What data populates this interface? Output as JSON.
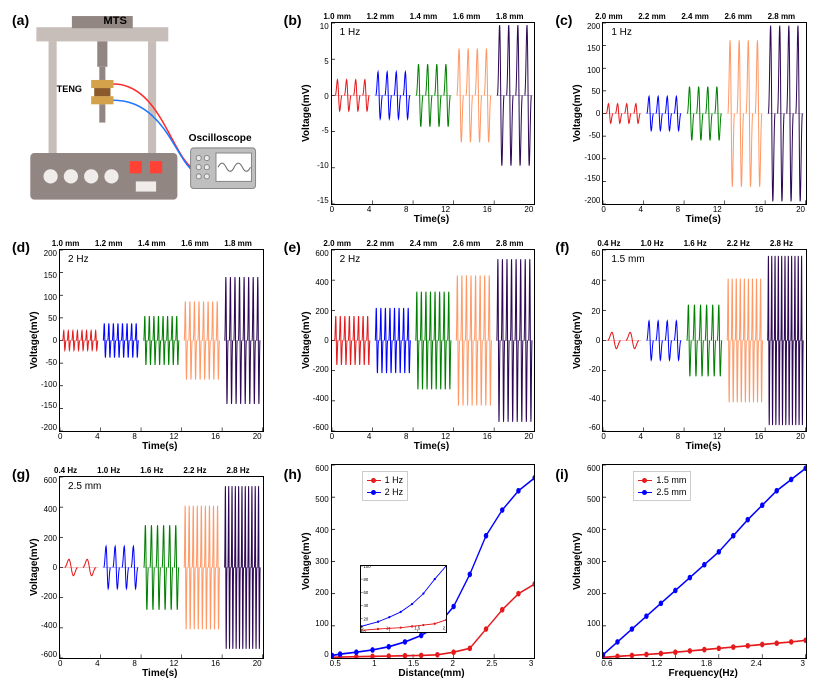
{
  "panels": {
    "a": {
      "label": "(a)",
      "mts_label": "MTS",
      "teng_label": "TENG",
      "oscilloscope_label": "Oscilloscope"
    },
    "b": {
      "label": "(b)",
      "type": "waveform",
      "inside_label": "1 Hz",
      "top_labels": [
        "1.0 mm",
        "1.2 mm",
        "1.4 mm",
        "1.6 mm",
        "1.8 mm"
      ],
      "ylabel": "Voltage(mV)",
      "xlabel": "Time(s)",
      "ylim": [
        -15,
        10
      ],
      "yticks": [
        10,
        5,
        0,
        -5,
        -10,
        -15
      ],
      "xlim": [
        0,
        20
      ],
      "xticks": [
        0,
        4,
        8,
        12,
        16,
        20
      ],
      "series_colors": [
        "#e41a1c",
        "#0000ff",
        "#008000",
        "#ff9966",
        "#2e0854"
      ],
      "series_amplitudes": [
        2,
        3,
        4,
        6,
        9
      ],
      "cycles_per_series": 4,
      "freq_hz": 1
    },
    "c": {
      "label": "(c)",
      "type": "waveform",
      "inside_label": "1 Hz",
      "top_labels": [
        "2.0 mm",
        "2.2 mm",
        "2.4 mm",
        "2.6 mm",
        "2.8 mm"
      ],
      "ylabel": "Voltage(mV)",
      "xlabel": "Time(s)",
      "ylim": [
        -200,
        200
      ],
      "yticks": [
        200,
        150,
        100,
        50,
        0,
        -50,
        -100,
        -150,
        -200
      ],
      "xlim": [
        0,
        20
      ],
      "xticks": [
        0,
        4,
        8,
        12,
        16,
        20
      ],
      "series_colors": [
        "#e41a1c",
        "#0000ff",
        "#008000",
        "#ff9966",
        "#2e0854"
      ],
      "series_amplitudes": [
        20,
        35,
        55,
        150,
        180
      ],
      "cycles_per_series": 4,
      "freq_hz": 1
    },
    "d": {
      "label": "(d)",
      "type": "waveform",
      "inside_label": "2 Hz",
      "top_labels": [
        "1.0 mm",
        "1.2 mm",
        "1.4 mm",
        "1.6 mm",
        "1.8 mm"
      ],
      "ylabel": "Voltage(mV)",
      "xlabel": "Time(s)",
      "ylim": [
        -200,
        200
      ],
      "yticks": [
        200,
        150,
        100,
        50,
        0,
        -50,
        -100,
        -150,
        -200
      ],
      "xlim": [
        0,
        20
      ],
      "xticks": [
        0,
        4,
        8,
        12,
        16,
        20
      ],
      "series_colors": [
        "#e41a1c",
        "#0000ff",
        "#008000",
        "#ff9966",
        "#2e0854"
      ],
      "series_amplitudes": [
        20,
        35,
        50,
        80,
        130
      ],
      "cycles_per_series": 8,
      "freq_hz": 2
    },
    "e": {
      "label": "(e)",
      "type": "waveform",
      "inside_label": "2 Hz",
      "top_labels": [
        "2.0 mm",
        "2.2 mm",
        "2.4 mm",
        "2.6 mm",
        "2.8 mm"
      ],
      "ylabel": "Voltage(mV)",
      "xlabel": "Time(s)",
      "ylim": [
        -600,
        600
      ],
      "yticks": [
        600,
        400,
        200,
        0,
        -200,
        -400,
        -600
      ],
      "xlim": [
        0,
        20
      ],
      "xticks": [
        0,
        4,
        8,
        12,
        16,
        20
      ],
      "series_colors": [
        "#e41a1c",
        "#0000ff",
        "#008000",
        "#ff9966",
        "#2e0854"
      ],
      "series_amplitudes": [
        150,
        200,
        300,
        400,
        500
      ],
      "cycles_per_series": 8,
      "freq_hz": 2
    },
    "f": {
      "label": "(f)",
      "type": "waveform",
      "inside_label": "1.5 mm",
      "top_labels": [
        "0.4 Hz",
        "1.0 Hz",
        "1.6 Hz",
        "2.2 Hz",
        "2.8 Hz"
      ],
      "ylabel": "Voltage(mV)",
      "xlabel": "Time(s)",
      "ylim": [
        -60,
        60
      ],
      "yticks": [
        60,
        40,
        20,
        0,
        -20,
        -40,
        -60
      ],
      "xlim": [
        0,
        20
      ],
      "xticks": [
        0,
        4,
        8,
        12,
        16,
        20
      ],
      "series_colors": [
        "#e41a1c",
        "#0000ff",
        "#008000",
        "#ff9966",
        "#2e0854"
      ],
      "series_amplitudes": [
        5,
        12,
        22,
        38,
        52
      ],
      "series_cycles": [
        2,
        4,
        6,
        9,
        11
      ]
    },
    "g": {
      "label": "(g)",
      "type": "waveform",
      "inside_label": "2.5 mm",
      "top_labels": [
        "0.4 Hz",
        "1.0 Hz",
        "1.6 Hz",
        "2.2 Hz",
        "2.8 Hz"
      ],
      "ylabel": "Voltage(mV)",
      "xlabel": "Time(s)",
      "ylim": [
        -600,
        600
      ],
      "yticks": [
        600,
        400,
        200,
        0,
        -200,
        -400,
        -600
      ],
      "xlim": [
        0,
        20
      ],
      "xticks": [
        0,
        4,
        8,
        12,
        16,
        20
      ],
      "series_colors": [
        "#e41a1c",
        "#0000ff",
        "#008000",
        "#ff9966",
        "#2e0854"
      ],
      "series_amplitudes": [
        50,
        130,
        260,
        380,
        500
      ],
      "series_cycles": [
        2,
        4,
        6,
        9,
        11
      ]
    },
    "h": {
      "label": "(h)",
      "type": "line",
      "ylabel": "Voltage(mV)",
      "xlabel": "Distance(mm)",
      "ylim": [
        0,
        600
      ],
      "yticks": [
        600,
        500,
        400,
        300,
        200,
        100,
        0
      ],
      "xlim": [
        0.5,
        3.0
      ],
      "xticks": [
        0.5,
        1.0,
        1.5,
        2.0,
        2.5,
        3.0
      ],
      "legend": [
        "1 Hz",
        "2 Hz"
      ],
      "legend_colors": [
        "#e41a1c",
        "#0000ff"
      ],
      "series": [
        {
          "color": "#e41a1c",
          "x": [
            0.5,
            0.6,
            0.8,
            1.0,
            1.2,
            1.4,
            1.6,
            1.8,
            2.0,
            2.2,
            2.4,
            2.6,
            2.8,
            3.0
          ],
          "y": [
            2,
            3,
            4,
            5,
            6,
            7,
            8,
            10,
            18,
            30,
            90,
            150,
            200,
            230
          ]
        },
        {
          "color": "#0000ff",
          "x": [
            0.5,
            0.6,
            0.8,
            1.0,
            1.2,
            1.4,
            1.6,
            1.8,
            2.0,
            2.2,
            2.4,
            2.6,
            2.8,
            3.0
          ],
          "y": [
            8,
            12,
            18,
            25,
            35,
            50,
            70,
            100,
            160,
            260,
            380,
            460,
            520,
            560
          ]
        }
      ],
      "inset": {
        "ylim": [
          0,
          100
        ],
        "xlim": [
          0.5,
          2.0
        ],
        "yticks": [
          100,
          80,
          60,
          40,
          20,
          0
        ],
        "xticks": [
          0.5,
          1.0,
          1.5,
          2.0
        ],
        "series": [
          {
            "color": "#e41a1c",
            "x": [
              0.5,
              0.8,
              1.0,
              1.2,
              1.4,
              1.6,
              1.8,
              2.0
            ],
            "y": [
              2,
              4,
              5,
              6,
              8,
              10,
              12,
              18
            ]
          },
          {
            "color": "#0000ff",
            "x": [
              0.5,
              0.8,
              1.0,
              1.2,
              1.4,
              1.6,
              1.8,
              2.0
            ],
            "y": [
              8,
              15,
              22,
              30,
              42,
              58,
              80,
              100
            ]
          }
        ]
      }
    },
    "i": {
      "label": "(i)",
      "type": "line",
      "ylabel": "Voltage(mV)",
      "xlabel": "Frequency(Hz)",
      "ylim": [
        0,
        600
      ],
      "yticks": [
        600,
        500,
        400,
        300,
        200,
        100,
        0
      ],
      "xlim": [
        0.2,
        3.0
      ],
      "xticks": [
        0.6,
        1.2,
        1.8,
        2.4,
        3.0
      ],
      "legend": [
        "1.5 mm",
        "2.5 mm"
      ],
      "legend_colors": [
        "#e41a1c",
        "#0000ff"
      ],
      "series": [
        {
          "color": "#e41a1c",
          "x": [
            0.2,
            0.4,
            0.6,
            0.8,
            1.0,
            1.2,
            1.4,
            1.6,
            1.8,
            2.0,
            2.2,
            2.4,
            2.6,
            2.8,
            3.0
          ],
          "y": [
            2,
            5,
            8,
            11,
            14,
            18,
            22,
            26,
            30,
            34,
            38,
            42,
            46,
            50,
            55
          ]
        },
        {
          "color": "#0000ff",
          "x": [
            0.2,
            0.4,
            0.6,
            0.8,
            1.0,
            1.2,
            1.4,
            1.6,
            1.8,
            2.0,
            2.2,
            2.4,
            2.6,
            2.8,
            3.0
          ],
          "y": [
            10,
            50,
            90,
            130,
            170,
            210,
            250,
            290,
            330,
            380,
            430,
            475,
            520,
            555,
            590
          ]
        }
      ]
    }
  },
  "schematic_colors": {
    "machine_body": "#c8beb9",
    "machine_dark": "#928682",
    "buttons": "#ff4136",
    "knobs": "#f0ece9",
    "teng_gold": "#d4a24a",
    "teng_brown": "#8a5a2a",
    "scope_body": "#bfbfbf",
    "scope_screen": "#ffffff",
    "scope_wave": "#6b6b6b",
    "wire_red": "#ff2a2a",
    "wire_blue": "#1f77ff"
  }
}
